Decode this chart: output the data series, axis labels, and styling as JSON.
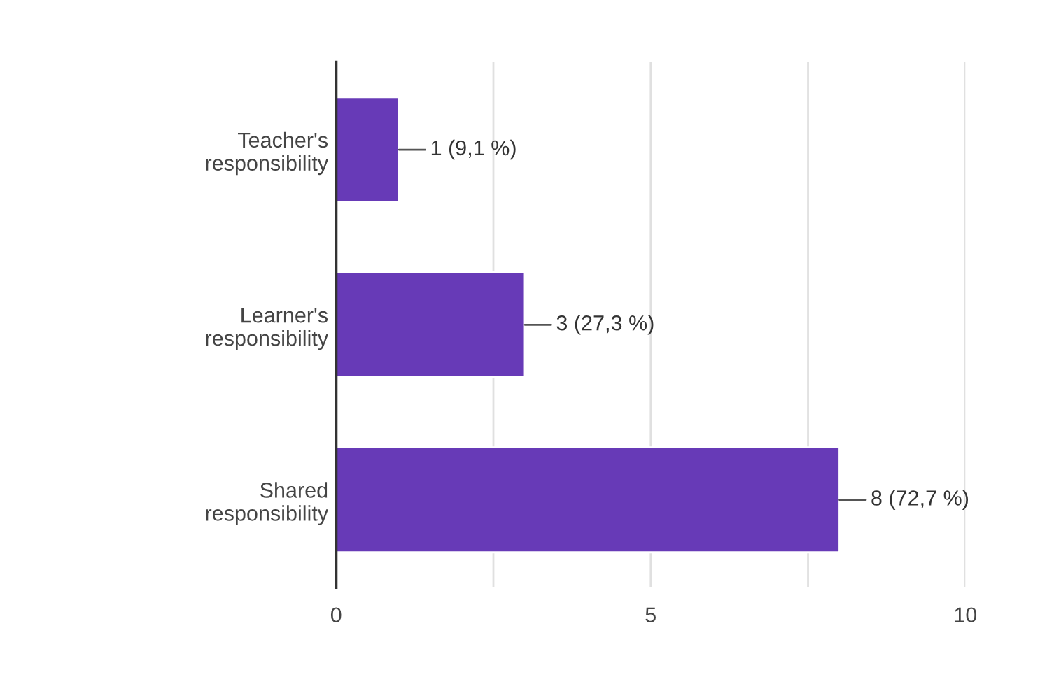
{
  "chart_data": {
    "type": "bar",
    "orientation": "horizontal",
    "categories": [
      "Teacher's\nresponsibility",
      "Learner's\nresponsibility",
      "Shared\nresponsibility"
    ],
    "values": [
      1,
      3,
      8
    ],
    "color": "#673ab7",
    "value_labels": [
      "1 (9,1 %)",
      "3 (27,3 %)",
      "8 (72,7 %)"
    ],
    "xlim": [
      0,
      10
    ],
    "xticks": [
      0,
      {
        "value": 2.5,
        "label": null
      },
      5,
      {
        "value": 7.5,
        "label": null
      },
      10
    ],
    "grid": "x",
    "legend": false
  }
}
